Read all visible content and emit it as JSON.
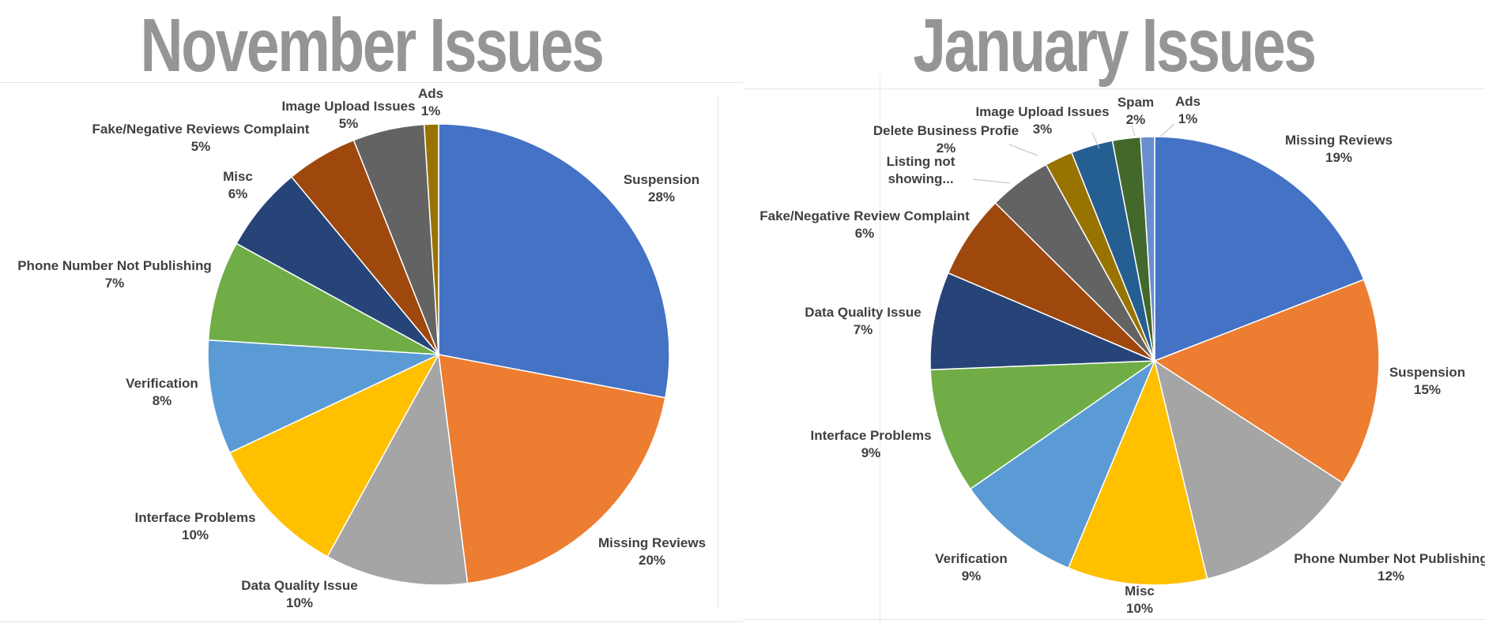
{
  "chart_data": [
    {
      "type": "pie",
      "title": "November Issues",
      "slices": [
        {
          "label": "Suspension",
          "pct_label": "28%",
          "value": 28,
          "color": "#4472C4"
        },
        {
          "label": "Missing Reviews",
          "pct_label": "20%",
          "value": 20,
          "color": "#ED7D31"
        },
        {
          "label": "Data Quality Issue",
          "pct_label": "10%",
          "value": 10,
          "color": "#A5A5A5"
        },
        {
          "label": "Interface Problems",
          "pct_label": "10%",
          "value": 10,
          "color": "#FFC000"
        },
        {
          "label": "Verification",
          "pct_label": "8%",
          "value": 8,
          "color": "#5B9BD5"
        },
        {
          "label": "Phone Number Not Publishing",
          "pct_label": "7%",
          "value": 7,
          "color": "#70AD47"
        },
        {
          "label": "Misc",
          "pct_label": "6%",
          "value": 6,
          "color": "#264478"
        },
        {
          "label": "Fake/Negative Reviews Complaint",
          "pct_label": "5%",
          "value": 5,
          "color": "#9E480E"
        },
        {
          "label": "Image Upload Issues",
          "pct_label": "5%",
          "value": 5,
          "color": "#636363"
        },
        {
          "label": "Ads",
          "pct_label": "1%",
          "value": 1,
          "color": "#997300"
        }
      ]
    },
    {
      "type": "pie",
      "title": "January Issues",
      "slices": [
        {
          "label": "Missing Reviews",
          "pct_label": "19%",
          "value": 19,
          "color": "#4472C4"
        },
        {
          "label": "Suspension",
          "pct_label": "15%",
          "value": 15,
          "color": "#ED7D31"
        },
        {
          "label": "Phone Number Not Publishing",
          "pct_label": "12%",
          "value": 12,
          "color": "#A5A5A5"
        },
        {
          "label": "Misc",
          "pct_label": "10%",
          "value": 10,
          "color": "#FFC000"
        },
        {
          "label": "Verification",
          "pct_label": "9%",
          "value": 9,
          "color": "#5B9BD5"
        },
        {
          "label": "Interface Problems",
          "pct_label": "9%",
          "value": 9,
          "color": "#70AD47"
        },
        {
          "label": "Data Quality Issue",
          "pct_label": "7%",
          "value": 7,
          "color": "#264478"
        },
        {
          "label": "Fake/Negative Review Complaint",
          "pct_label": "6%",
          "value": 6,
          "color": "#9E480E"
        },
        {
          "label": "Listing not showing...",
          "pct_label": "",
          "value": 4.5,
          "color": "#636363"
        },
        {
          "label": "Delete Business Profie",
          "pct_label": "2%",
          "value": 2,
          "color": "#997300"
        },
        {
          "label": "Image Upload Issues",
          "pct_label": "3%",
          "value": 3,
          "color": "#255E91"
        },
        {
          "label": "Spam",
          "pct_label": "2%",
          "value": 2,
          "color": "#43682B"
        },
        {
          "label": "Ads",
          "pct_label": "1%",
          "value": 1,
          "color": "#698ED0"
        }
      ]
    }
  ]
}
